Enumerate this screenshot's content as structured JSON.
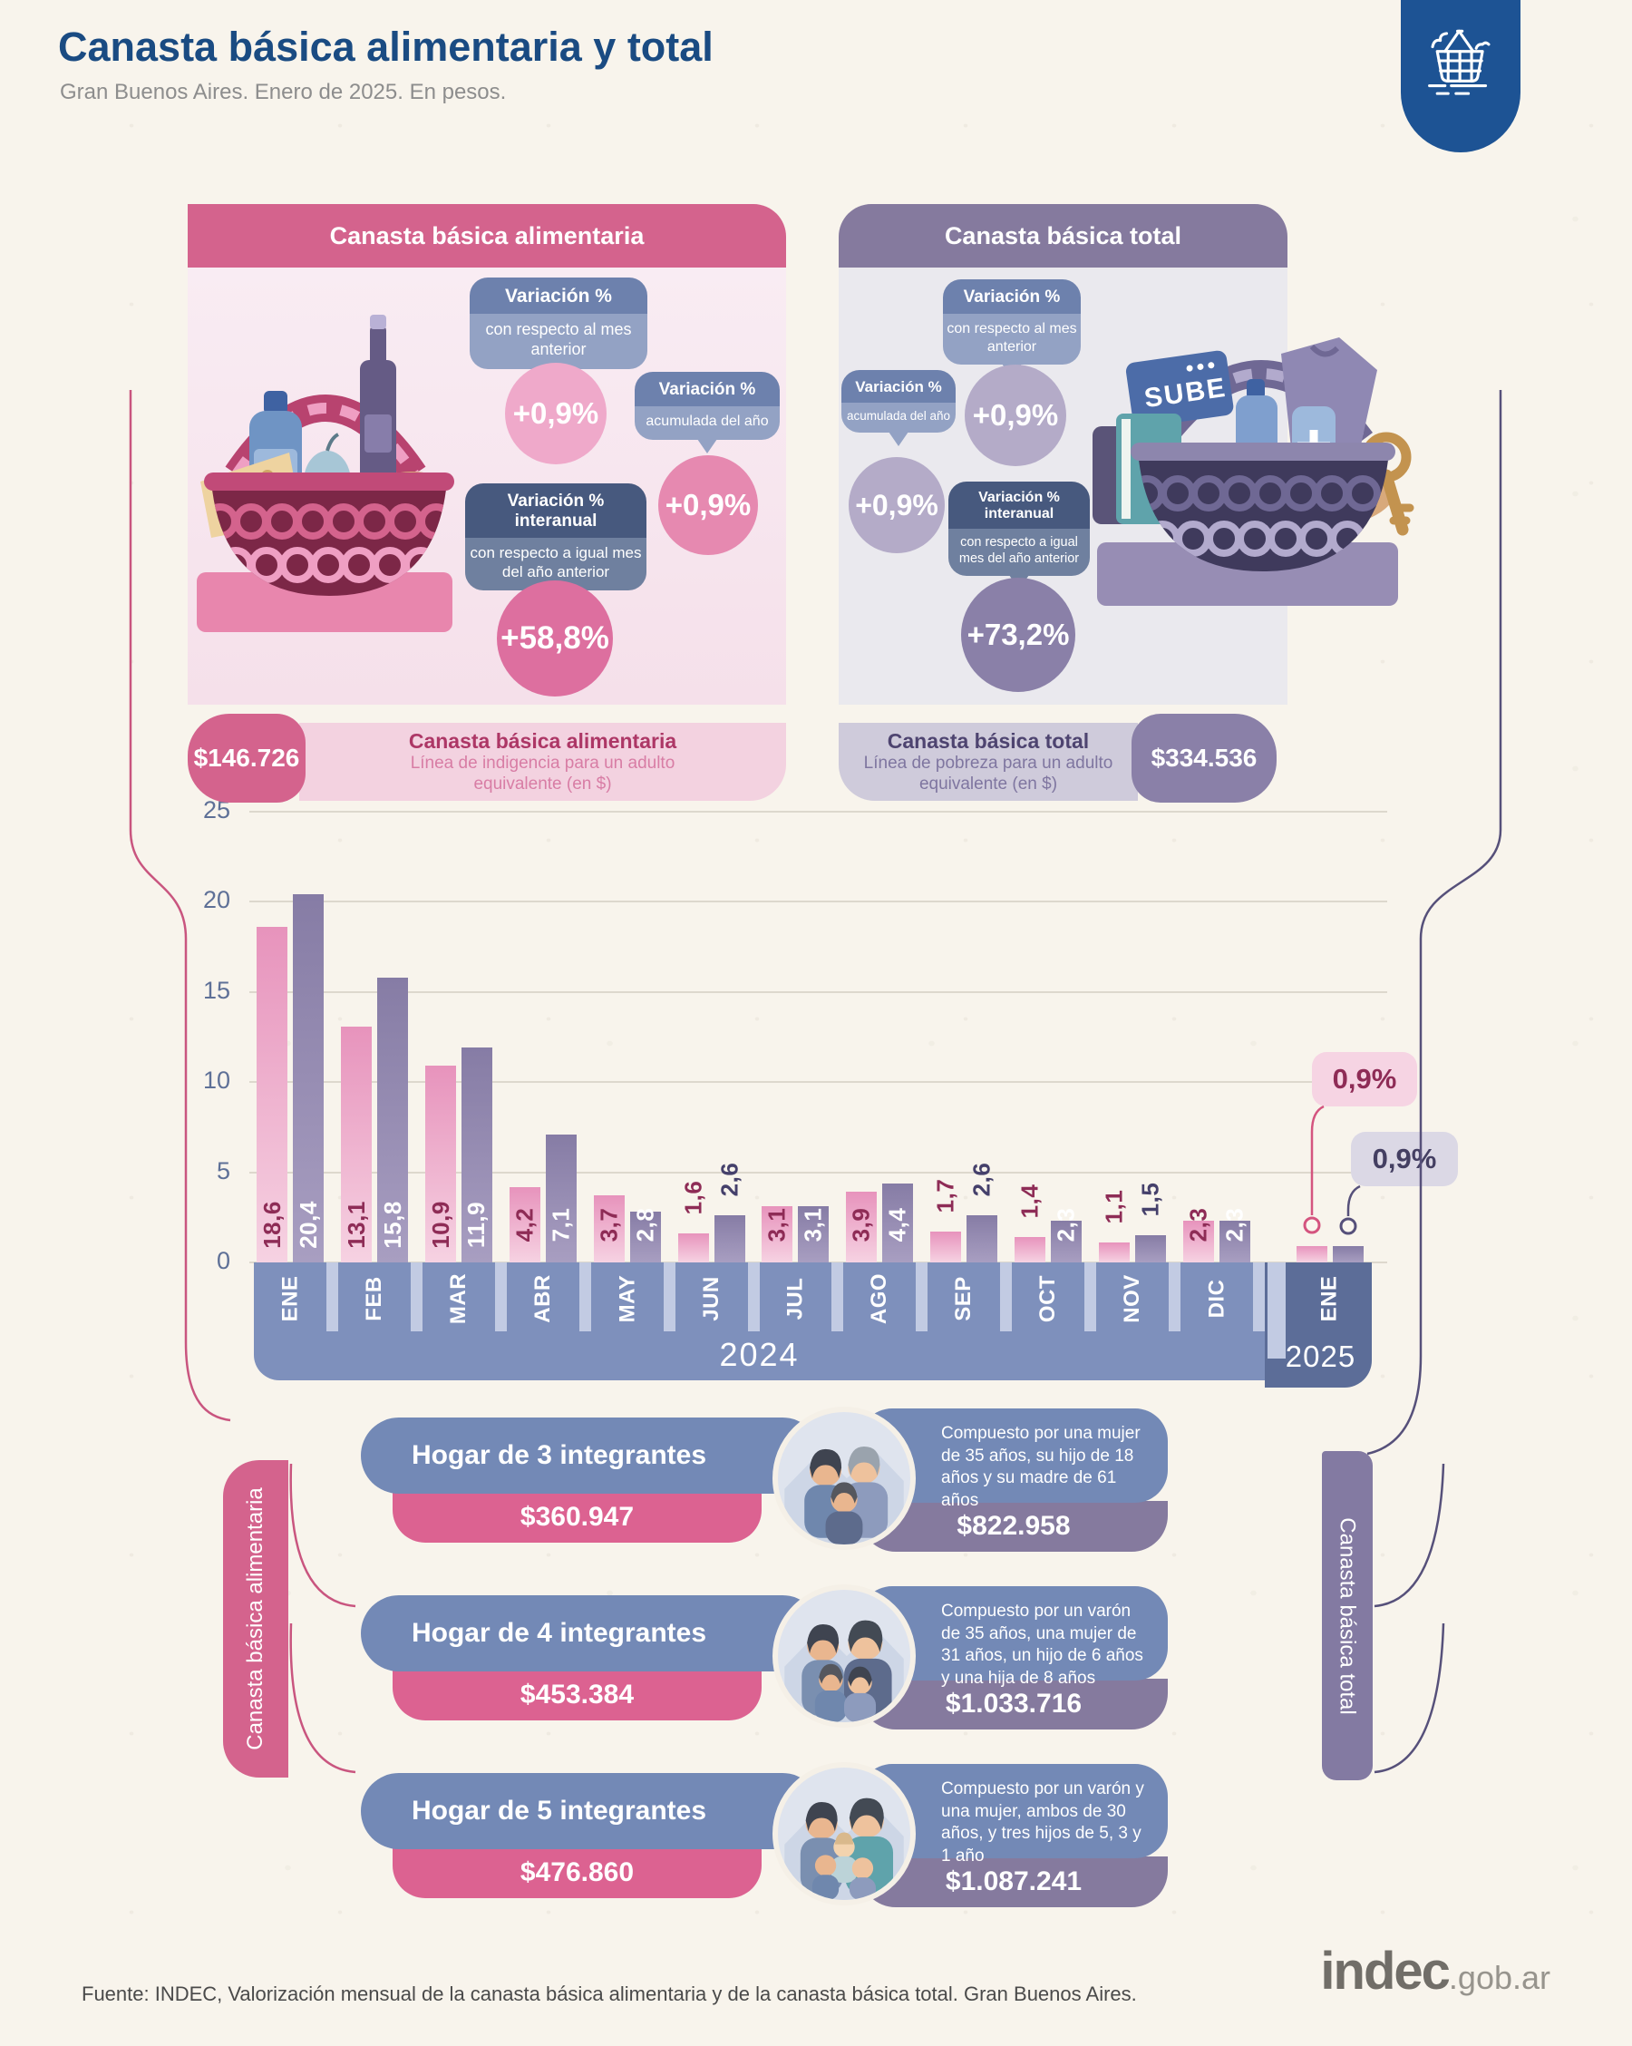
{
  "page": {
    "title": "Canasta básica alimentaria y total",
    "subtitle": "Gran Buenos Aires. Enero de 2025. En pesos.",
    "source": "Fuente: INDEC, Valorización mensual de la canasta básica alimentaria y de la canasta básica total. Gran Buenos Aires.",
    "logo": {
      "name": "indec",
      "suffix": ".gob.ar"
    },
    "badge_icon": "shopping-basket-icon"
  },
  "panels": {
    "alimentaria": {
      "header": "Canasta básica alimentaria",
      "accent_color": "#d4638d",
      "bubbles": [
        {
          "title": "Variación %",
          "subtitle": "con respecto al mes anterior",
          "value": "+0,9%"
        },
        {
          "title": "Variación %",
          "subtitle": "acumulada del año",
          "value": "+0,9%"
        },
        {
          "title": "Variación % interanual",
          "subtitle": "con respecto a igual mes del año anterior",
          "value": "+58,8%"
        }
      ],
      "amount": "$146.726",
      "amount_title": "Canasta básica alimentaria",
      "amount_subtitle": "Línea de indigencia para un adulto equivalente (en $)",
      "illustration": "pink-food-basket-illustration"
    },
    "total": {
      "header": "Canasta básica total",
      "accent_color": "#857a9e",
      "bubbles": [
        {
          "title": "Variación %",
          "subtitle": "con respecto al mes anterior",
          "value": "+0,9%"
        },
        {
          "title": "Variación %",
          "subtitle": "acumulada del año",
          "value": "+0,9%"
        },
        {
          "title": "Variación % interanual",
          "subtitle": "con respecto a igual mes del año anterior",
          "value": "+73,2%"
        }
      ],
      "amount": "$334.536",
      "amount_title": "Canasta básica total",
      "amount_subtitle": "Línea de pobreza para un adulto equivalente (en $)",
      "illustration": "purple-mixed-basket-illustration"
    }
  },
  "chart_data": {
    "type": "bar",
    "categories": [
      "ENE",
      "FEB",
      "MAR",
      "ABR",
      "MAY",
      "JUN",
      "JUL",
      "AGO",
      "SEP",
      "OCT",
      "NOV",
      "DIC",
      "ENE"
    ],
    "year_labels": [
      "2024",
      "2025"
    ],
    "series": [
      {
        "name": "Canasta básica alimentaria",
        "color_top": "#e793bc",
        "color_bottom": "#f6d2e2",
        "label_color": "#8e2c56",
        "values": [
          18.6,
          13.1,
          10.9,
          4.2,
          3.7,
          1.6,
          3.1,
          3.9,
          1.7,
          1.4,
          1.1,
          2.3,
          0.9
        ]
      },
      {
        "name": "Canasta básica total",
        "color_top": "#867ca5",
        "color_bottom": "#a89ec1",
        "label_color_inside": "#ffffff",
        "label_color_outside": "#45406b",
        "values": [
          20.4,
          15.8,
          11.9,
          7.1,
          2.8,
          2.6,
          3.1,
          4.4,
          2.6,
          2.3,
          1.5,
          2.3,
          0.9
        ]
      }
    ],
    "label_inside": {
      "alimentaria": [
        true,
        true,
        true,
        true,
        true,
        false,
        true,
        true,
        false,
        false,
        false,
        true
      ],
      "total": [
        true,
        true,
        true,
        true,
        true,
        false,
        true,
        true,
        false,
        true,
        false,
        true
      ]
    },
    "callouts": [
      {
        "label": "0,9%",
        "series": "Canasta básica alimentaria"
      },
      {
        "label": "0,9%",
        "series": "Canasta básica total"
      }
    ],
    "ylim": [
      0,
      25
    ],
    "yticks": [
      0,
      5,
      10,
      15,
      20,
      25
    ],
    "grid": true,
    "legend_position": "none"
  },
  "households": {
    "left_axis_label": "Canasta básica alimentaria",
    "right_axis_label": "Canasta básica total",
    "rows": [
      {
        "label": "Hogar de 3 integrantes",
        "cba": "$360.947",
        "description": "Compuesto por una mujer de 35 años, su hijo de 18 años y su madre de 61 años",
        "cbt": "$822.958"
      },
      {
        "label": "Hogar de 4 integrantes",
        "cba": "$453.384",
        "description": "Compuesto por un varón de 35 años, una mujer de 31 años, un hijo de 6 años y una hija de 8 años",
        "cbt": "$1.033.716"
      },
      {
        "label": "Hogar de 5 integrantes",
        "cba": "$476.860",
        "description": "Compuesto por un varón y una mujer, ambos de 30 años, y tres hijos de 5, 3 y 1 año",
        "cbt": "$1.087.241"
      }
    ]
  }
}
